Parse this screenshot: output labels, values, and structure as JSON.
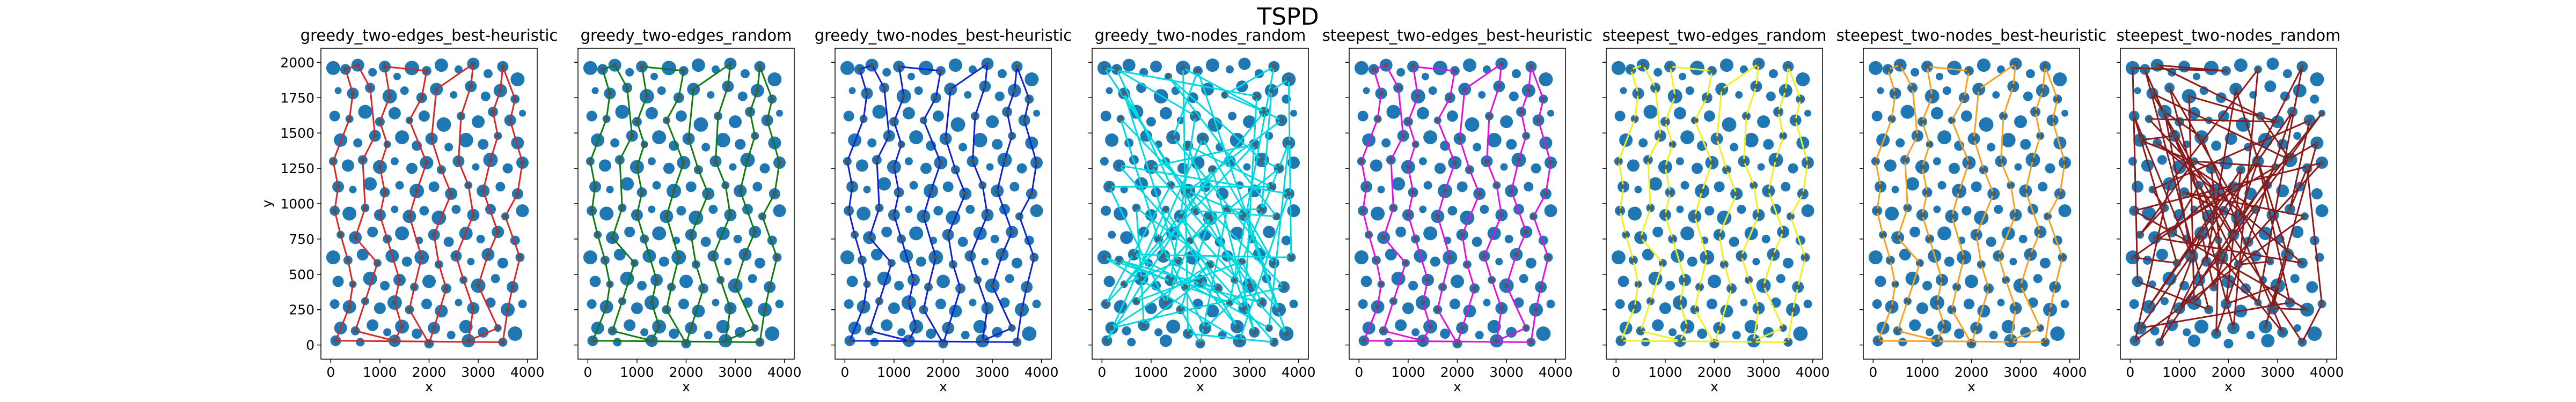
{
  "figure": {
    "title": "TSPD"
  },
  "chart_data": [
    {
      "type": "scatter",
      "title": "greedy_two-edges_best-heuristic",
      "xlabel": "x",
      "ylabel": "y",
      "xlim": [
        -200,
        4200
      ],
      "ylim": [
        -100,
        2100
      ],
      "xticks": [
        0,
        1000,
        2000,
        3000,
        4000
      ],
      "yticks": [
        0,
        250,
        500,
        750,
        1000,
        1250,
        1500,
        1750,
        2000
      ],
      "line_color": "#d62728",
      "path_style": "zigzag"
    },
    {
      "type": "scatter",
      "title": "greedy_two-edges_random",
      "xlabel": "x",
      "ylabel": "",
      "xlim": [
        -200,
        4200
      ],
      "ylim": [
        -100,
        2100
      ],
      "xticks": [
        0,
        1000,
        2000,
        3000,
        4000
      ],
      "yticks": [
        0,
        250,
        500,
        750,
        1000,
        1250,
        1500,
        1750,
        2000
      ],
      "line_color": "#107a10",
      "path_style": "zigzag"
    },
    {
      "type": "scatter",
      "title": "greedy_two-nodes_best-heuristic",
      "xlabel": "x",
      "ylabel": "",
      "xlim": [
        -200,
        4200
      ],
      "ylim": [
        -100,
        2100
      ],
      "xticks": [
        0,
        1000,
        2000,
        3000,
        4000
      ],
      "yticks": [
        0,
        250,
        500,
        750,
        1000,
        1250,
        1500,
        1750,
        2000
      ],
      "line_color": "#1020d0",
      "path_style": "zigzag"
    },
    {
      "type": "scatter",
      "title": "greedy_two-nodes_random",
      "xlabel": "x",
      "ylabel": "",
      "xlim": [
        -200,
        4200
      ],
      "ylim": [
        -100,
        2100
      ],
      "xticks": [
        0,
        1000,
        2000,
        3000,
        4000
      ],
      "yticks": [
        0,
        250,
        500,
        750,
        1000,
        1250,
        1500,
        1750,
        2000
      ],
      "line_color": "#00d8e0",
      "path_style": "random"
    },
    {
      "type": "scatter",
      "title": "steepest_two-edges_best-heuristic",
      "xlabel": "x",
      "ylabel": "",
      "xlim": [
        -200,
        4200
      ],
      "ylim": [
        -100,
        2100
      ],
      "xticks": [
        0,
        1000,
        2000,
        3000,
        4000
      ],
      "yticks": [
        0,
        250,
        500,
        750,
        1000,
        1250,
        1500,
        1750,
        2000
      ],
      "line_color": "#e010e0",
      "path_style": "zigzag"
    },
    {
      "type": "scatter",
      "title": "steepest_two-edges_random",
      "xlabel": "x",
      "ylabel": "",
      "xlim": [
        -200,
        4200
      ],
      "ylim": [
        -100,
        2100
      ],
      "xticks": [
        0,
        1000,
        2000,
        3000,
        4000
      ],
      "yticks": [
        0,
        250,
        500,
        750,
        1000,
        1250,
        1500,
        1750,
        2000
      ],
      "line_color": "#f0f020",
      "path_style": "zigzag"
    },
    {
      "type": "scatter",
      "title": "steepest_two-nodes_best-heuristic",
      "xlabel": "x",
      "ylabel": "",
      "xlim": [
        -200,
        4200
      ],
      "ylim": [
        -100,
        2100
      ],
      "xticks": [
        0,
        1000,
        2000,
        3000,
        4000
      ],
      "yticks": [
        0,
        250,
        500,
        750,
        1000,
        1250,
        1500,
        1750,
        2000
      ],
      "line_color": "#f5a020",
      "path_style": "zigzag"
    },
    {
      "type": "scatter",
      "title": "steepest_two-nodes_random",
      "xlabel": "x",
      "ylabel": "",
      "xlim": [
        -200,
        4200
      ],
      "ylim": [
        -100,
        2100
      ],
      "xticks": [
        0,
        1000,
        2000,
        3000,
        4000
      ],
      "yticks": [
        0,
        250,
        500,
        750,
        1000,
        1250,
        1500,
        1750,
        2000
      ],
      "line_color": "#8b1a1a",
      "path_style": "random"
    }
  ],
  "points_color": "#1f77b4",
  "points": [
    {
      "x": 50,
      "y": 1960,
      "c": 90
    },
    {
      "x": 300,
      "y": 1950,
      "c": 60
    },
    {
      "x": 550,
      "y": 1980,
      "c": 80
    },
    {
      "x": 850,
      "y": 1930,
      "c": 40
    },
    {
      "x": 1100,
      "y": 1970,
      "c": 70
    },
    {
      "x": 1350,
      "y": 1900,
      "c": 30
    },
    {
      "x": 1650,
      "y": 1960,
      "c": 95
    },
    {
      "x": 1950,
      "y": 1940,
      "c": 50
    },
    {
      "x": 2250,
      "y": 1980,
      "c": 85
    },
    {
      "x": 2600,
      "y": 1950,
      "c": 35
    },
    {
      "x": 2900,
      "y": 1990,
      "c": 75
    },
    {
      "x": 3200,
      "y": 1920,
      "c": 45
    },
    {
      "x": 3500,
      "y": 1970,
      "c": 65
    },
    {
      "x": 3800,
      "y": 1880,
      "c": 90
    },
    {
      "x": 150,
      "y": 1800,
      "c": 25
    },
    {
      "x": 450,
      "y": 1780,
      "c": 70
    },
    {
      "x": 800,
      "y": 1820,
      "c": 55
    },
    {
      "x": 1200,
      "y": 1760,
      "c": 95
    },
    {
      "x": 1500,
      "y": 1800,
      "c": 40
    },
    {
      "x": 1850,
      "y": 1750,
      "c": 60
    },
    {
      "x": 2150,
      "y": 1810,
      "c": 80
    },
    {
      "x": 2500,
      "y": 1770,
      "c": 30
    },
    {
      "x": 2850,
      "y": 1830,
      "c": 70
    },
    {
      "x": 3150,
      "y": 1760,
      "c": 50
    },
    {
      "x": 3450,
      "y": 1800,
      "c": 85
    },
    {
      "x": 3750,
      "y": 1740,
      "c": 45
    },
    {
      "x": 80,
      "y": 1620,
      "c": 60
    },
    {
      "x": 380,
      "y": 1600,
      "c": 35
    },
    {
      "x": 700,
      "y": 1650,
      "c": 90
    },
    {
      "x": 1000,
      "y": 1580,
      "c": 50
    },
    {
      "x": 1300,
      "y": 1640,
      "c": 75
    },
    {
      "x": 1600,
      "y": 1590,
      "c": 30
    },
    {
      "x": 1900,
      "y": 1620,
      "c": 65
    },
    {
      "x": 2300,
      "y": 1560,
      "c": 95
    },
    {
      "x": 2650,
      "y": 1620,
      "c": 40
    },
    {
      "x": 3000,
      "y": 1580,
      "c": 80
    },
    {
      "x": 3300,
      "y": 1650,
      "c": 55
    },
    {
      "x": 3650,
      "y": 1590,
      "c": 70
    },
    {
      "x": 3900,
      "y": 1640,
      "c": 25
    },
    {
      "x": 200,
      "y": 1450,
      "c": 85
    },
    {
      "x": 550,
      "y": 1430,
      "c": 45
    },
    {
      "x": 900,
      "y": 1480,
      "c": 70
    },
    {
      "x": 1150,
      "y": 1420,
      "c": 30
    },
    {
      "x": 1450,
      "y": 1470,
      "c": 90
    },
    {
      "x": 1750,
      "y": 1410,
      "c": 55
    },
    {
      "x": 2050,
      "y": 1460,
      "c": 75
    },
    {
      "x": 2400,
      "y": 1400,
      "c": 40
    },
    {
      "x": 2750,
      "y": 1450,
      "c": 95
    },
    {
      "x": 3100,
      "y": 1420,
      "c": 60
    },
    {
      "x": 3400,
      "y": 1480,
      "c": 35
    },
    {
      "x": 3800,
      "y": 1430,
      "c": 80
    },
    {
      "x": 50,
      "y": 1300,
      "c": 40
    },
    {
      "x": 350,
      "y": 1270,
      "c": 75
    },
    {
      "x": 650,
      "y": 1310,
      "c": 50
    },
    {
      "x": 1000,
      "y": 1260,
      "c": 90
    },
    {
      "x": 1300,
      "y": 1300,
      "c": 35
    },
    {
      "x": 1650,
      "y": 1250,
      "c": 65
    },
    {
      "x": 1950,
      "y": 1290,
      "c": 85
    },
    {
      "x": 2250,
      "y": 1240,
      "c": 45
    },
    {
      "x": 2600,
      "y": 1300,
      "c": 70
    },
    {
      "x": 2950,
      "y": 1260,
      "c": 30
    },
    {
      "x": 3250,
      "y": 1310,
      "c": 95
    },
    {
      "x": 3600,
      "y": 1250,
      "c": 55
    },
    {
      "x": 3900,
      "y": 1290,
      "c": 75
    },
    {
      "x": 150,
      "y": 1120,
      "c": 70
    },
    {
      "x": 450,
      "y": 1100,
      "c": 30
    },
    {
      "x": 800,
      "y": 1140,
      "c": 85
    },
    {
      "x": 1100,
      "y": 1080,
      "c": 55
    },
    {
      "x": 1400,
      "y": 1130,
      "c": 40
    },
    {
      "x": 1750,
      "y": 1090,
      "c": 95
    },
    {
      "x": 2100,
      "y": 1120,
      "c": 60
    },
    {
      "x": 2450,
      "y": 1070,
      "c": 75
    },
    {
      "x": 2800,
      "y": 1130,
      "c": 35
    },
    {
      "x": 3100,
      "y": 1090,
      "c": 80
    },
    {
      "x": 3450,
      "y": 1120,
      "c": 50
    },
    {
      "x": 3800,
      "y": 1070,
      "c": 65
    },
    {
      "x": 80,
      "y": 950,
      "c": 55
    },
    {
      "x": 380,
      "y": 930,
      "c": 90
    },
    {
      "x": 700,
      "y": 970,
      "c": 40
    },
    {
      "x": 1000,
      "y": 920,
      "c": 70
    },
    {
      "x": 1300,
      "y": 960,
      "c": 30
    },
    {
      "x": 1600,
      "y": 910,
      "c": 85
    },
    {
      "x": 1900,
      "y": 950,
      "c": 50
    },
    {
      "x": 2200,
      "y": 900,
      "c": 95
    },
    {
      "x": 2550,
      "y": 960,
      "c": 45
    },
    {
      "x": 2900,
      "y": 920,
      "c": 75
    },
    {
      "x": 3250,
      "y": 960,
      "c": 60
    },
    {
      "x": 3550,
      "y": 910,
      "c": 35
    },
    {
      "x": 3900,
      "y": 950,
      "c": 80
    },
    {
      "x": 200,
      "y": 780,
      "c": 35
    },
    {
      "x": 500,
      "y": 760,
      "c": 80
    },
    {
      "x": 850,
      "y": 800,
      "c": 60
    },
    {
      "x": 1150,
      "y": 750,
      "c": 45
    },
    {
      "x": 1450,
      "y": 790,
      "c": 90
    },
    {
      "x": 1800,
      "y": 740,
      "c": 30
    },
    {
      "x": 2100,
      "y": 780,
      "c": 70
    },
    {
      "x": 2400,
      "y": 730,
      "c": 55
    },
    {
      "x": 2750,
      "y": 790,
      "c": 85
    },
    {
      "x": 3050,
      "y": 750,
      "c": 40
    },
    {
      "x": 3400,
      "y": 800,
      "c": 75
    },
    {
      "x": 3750,
      "y": 740,
      "c": 50
    },
    {
      "x": 50,
      "y": 620,
      "c": 90
    },
    {
      "x": 350,
      "y": 600,
      "c": 45
    },
    {
      "x": 650,
      "y": 640,
      "c": 70
    },
    {
      "x": 950,
      "y": 580,
      "c": 35
    },
    {
      "x": 1250,
      "y": 630,
      "c": 85
    },
    {
      "x": 1550,
      "y": 590,
      "c": 55
    },
    {
      "x": 1850,
      "y": 620,
      "c": 95
    },
    {
      "x": 2200,
      "y": 570,
      "c": 40
    },
    {
      "x": 2550,
      "y": 630,
      "c": 65
    },
    {
      "x": 2850,
      "y": 590,
      "c": 30
    },
    {
      "x": 3200,
      "y": 640,
      "c": 80
    },
    {
      "x": 3500,
      "y": 580,
      "c": 60
    },
    {
      "x": 3850,
      "y": 620,
      "c": 45
    },
    {
      "x": 150,
      "y": 450,
      "c": 65
    },
    {
      "x": 450,
      "y": 430,
      "c": 30
    },
    {
      "x": 800,
      "y": 470,
      "c": 90
    },
    {
      "x": 1100,
      "y": 420,
      "c": 50
    },
    {
      "x": 1400,
      "y": 460,
      "c": 75
    },
    {
      "x": 1700,
      "y": 410,
      "c": 40
    },
    {
      "x": 2000,
      "y": 450,
      "c": 85
    },
    {
      "x": 2350,
      "y": 400,
      "c": 55
    },
    {
      "x": 2700,
      "y": 460,
      "c": 35
    },
    {
      "x": 3000,
      "y": 420,
      "c": 95
    },
    {
      "x": 3350,
      "y": 470,
      "c": 45
    },
    {
      "x": 3700,
      "y": 410,
      "c": 70
    },
    {
      "x": 80,
      "y": 290,
      "c": 50
    },
    {
      "x": 380,
      "y": 270,
      "c": 85
    },
    {
      "x": 700,
      "y": 310,
      "c": 35
    },
    {
      "x": 1000,
      "y": 260,
      "c": 70
    },
    {
      "x": 1300,
      "y": 300,
      "c": 95
    },
    {
      "x": 1600,
      "y": 250,
      "c": 45
    },
    {
      "x": 1950,
      "y": 290,
      "c": 60
    },
    {
      "x": 2250,
      "y": 240,
      "c": 80
    },
    {
      "x": 2600,
      "y": 300,
      "c": 30
    },
    {
      "x": 2900,
      "y": 260,
      "c": 75
    },
    {
      "x": 3250,
      "y": 300,
      "c": 55
    },
    {
      "x": 3600,
      "y": 250,
      "c": 90
    },
    {
      "x": 3900,
      "y": 290,
      "c": 40
    },
    {
      "x": 200,
      "y": 120,
      "c": 80
    },
    {
      "x": 500,
      "y": 100,
      "c": 45
    },
    {
      "x": 850,
      "y": 140,
      "c": 70
    },
    {
      "x": 1150,
      "y": 90,
      "c": 35
    },
    {
      "x": 1450,
      "y": 130,
      "c": 90
    },
    {
      "x": 1750,
      "y": 80,
      "c": 55
    },
    {
      "x": 2100,
      "y": 120,
      "c": 75
    },
    {
      "x": 2450,
      "y": 70,
      "c": 40
    },
    {
      "x": 2750,
      "y": 130,
      "c": 85
    },
    {
      "x": 3100,
      "y": 90,
      "c": 60
    },
    {
      "x": 3400,
      "y": 120,
      "c": 30
    },
    {
      "x": 3750,
      "y": 80,
      "c": 95
    },
    {
      "x": 100,
      "y": 30,
      "c": 60
    },
    {
      "x": 600,
      "y": 20,
      "c": 40
    },
    {
      "x": 1300,
      "y": 30,
      "c": 75
    },
    {
      "x": 2000,
      "y": 10,
      "c": 50
    },
    {
      "x": 2800,
      "y": 30,
      "c": 85
    },
    {
      "x": 3500,
      "y": 20,
      "c": 45
    }
  ]
}
